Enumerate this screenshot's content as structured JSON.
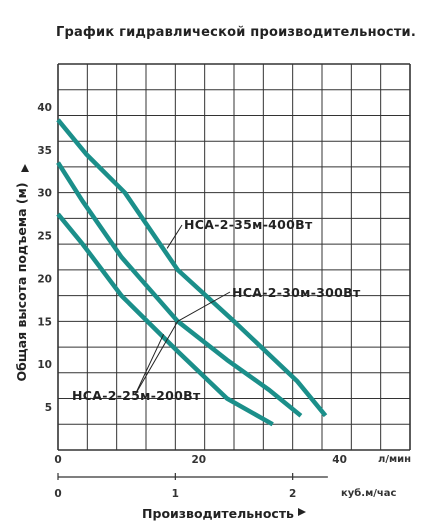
{
  "chart_data": {
    "type": "line",
    "title": "График гидравлической производительности.",
    "ylabel": "Общая высота подъема  (м)",
    "xlabel": "Производительность",
    "ylim": [
      0,
      45
    ],
    "xlim_lmin": [
      0,
      50
    ],
    "y_ticks": [
      5,
      10,
      15,
      20,
      25,
      30,
      35,
      40
    ],
    "x_ticks_lmin": [
      0,
      20,
      40
    ],
    "x_ticks_m3h": [
      0,
      1,
      2
    ],
    "x_unit_lmin": "л/мин",
    "x_unit_m3h": "куб.м/час",
    "grid": true,
    "line_color": "#1b8f8a",
    "series": [
      {
        "name": "НСА-2-35м-400Вт",
        "x": [
          0,
          4,
          9.5,
          17,
          25,
          34,
          38
        ],
        "y": [
          38.5,
          34.5,
          30,
          21,
          15,
          8,
          4
        ]
      },
      {
        "name": "НСА-2-30м-300Вт",
        "x": [
          0,
          3.5,
          9,
          17,
          24,
          30,
          34.5
        ],
        "y": [
          33.5,
          29,
          22.5,
          15,
          10.5,
          7,
          4
        ]
      },
      {
        "name": "НСА-2-25м-200Вт",
        "x": [
          0,
          3.5,
          9,
          17,
          24,
          30.5
        ],
        "y": [
          27.5,
          24,
          18,
          11.5,
          6,
          3
        ]
      }
    ]
  }
}
